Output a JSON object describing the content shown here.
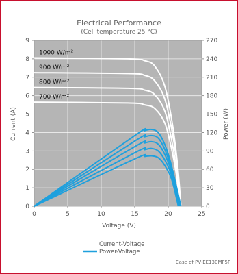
{
  "chart_data": {
    "type": "line",
    "title": "Electrical  Performance",
    "subtitle": "(Cell temperature 25 °C)",
    "xlabel": "Voltage  (V)",
    "ylabel_left": "Current  (A)",
    "ylabel_right": "Power  (W)",
    "xlim": [
      0,
      25
    ],
    "ylim_left": [
      0,
      9
    ],
    "ylim_right": [
      0,
      270
    ],
    "x_ticks": [
      "0",
      "5",
      "10",
      "15",
      "20",
      "25"
    ],
    "y_left_ticks": [
      "0",
      "1",
      "2",
      "3",
      "4",
      "5",
      "6",
      "7",
      "8",
      "9"
    ],
    "y_right_ticks": [
      "0",
      "30",
      "60",
      "90",
      "120",
      "150",
      "180",
      "210",
      "240",
      "270"
    ],
    "grid": true,
    "background_color": "#b5b5b5",
    "current_color": "#ffffff",
    "power_color": "#1fa0dd",
    "irradiance_labels": [
      "1000  W/m²",
      "900  W/m²",
      "800  W/m²",
      "700  W/m²"
    ],
    "current_voltage_series": [
      {
        "points": [
          [
            0,
            8.05
          ],
          [
            14,
            8.0
          ],
          [
            16.5,
            7.9
          ],
          [
            18,
            7.6
          ],
          [
            19.5,
            6.5
          ],
          [
            20.6,
            4.5
          ],
          [
            21.4,
            2.2
          ],
          [
            21.9,
            0
          ]
        ]
      },
      {
        "points": [
          [
            0,
            7.25
          ],
          [
            14,
            7.2
          ],
          [
            16.5,
            7.1
          ],
          [
            18,
            6.8
          ],
          [
            19.5,
            5.8
          ],
          [
            20.6,
            4.0
          ],
          [
            21.4,
            2.0
          ],
          [
            21.8,
            0
          ]
        ]
      },
      {
        "points": [
          [
            0,
            6.45
          ],
          [
            14,
            6.4
          ],
          [
            16.5,
            6.3
          ],
          [
            18,
            6.05
          ],
          [
            19.5,
            5.15
          ],
          [
            20.5,
            3.6
          ],
          [
            21.3,
            1.8
          ],
          [
            21.7,
            0
          ]
        ]
      },
      {
        "points": [
          [
            0,
            5.65
          ],
          [
            14,
            5.6
          ],
          [
            16.5,
            5.5
          ],
          [
            18,
            5.3
          ],
          [
            19.5,
            4.5
          ],
          [
            20.5,
            3.1
          ],
          [
            21.3,
            1.5
          ],
          [
            21.6,
            0
          ]
        ]
      }
    ],
    "power_voltage_series": [
      {
        "points": [
          [
            0,
            0
          ],
          [
            15,
            115
          ],
          [
            16.5,
            123
          ],
          [
            17.5,
            125
          ],
          [
            18.5,
            120
          ],
          [
            19.5,
            100
          ],
          [
            20.5,
            65
          ],
          [
            21.9,
            0
          ]
        ]
      },
      {
        "points": [
          [
            0,
            0
          ],
          [
            15,
            106
          ],
          [
            16.5,
            113
          ],
          [
            17.5,
            115
          ],
          [
            18.5,
            111
          ],
          [
            19.5,
            92
          ],
          [
            20.5,
            60
          ],
          [
            21.8,
            0
          ]
        ]
      },
      {
        "points": [
          [
            0,
            0
          ],
          [
            15,
            97
          ],
          [
            16.5,
            103
          ],
          [
            17.5,
            105
          ],
          [
            18.5,
            101
          ],
          [
            19.5,
            84
          ],
          [
            20.5,
            55
          ],
          [
            21.7,
            0
          ]
        ]
      },
      {
        "points": [
          [
            0,
            0
          ],
          [
            15,
            87
          ],
          [
            16.5,
            92
          ],
          [
            17.5,
            94
          ],
          [
            18.5,
            90
          ],
          [
            19.5,
            75
          ],
          [
            20.5,
            50
          ],
          [
            21.6,
            0
          ]
        ]
      },
      {
        "points": [
          [
            0,
            0
          ],
          [
            15,
            77
          ],
          [
            16.5,
            81
          ],
          [
            17.5,
            82
          ],
          [
            18.5,
            79
          ],
          [
            19.5,
            66
          ],
          [
            20.5,
            44
          ],
          [
            21.5,
            0
          ]
        ]
      }
    ],
    "legend": [
      {
        "label": "Current-Voltage",
        "key": "current"
      },
      {
        "label": "Power-Voltage",
        "key": "power"
      }
    ],
    "legend_placement": "bottom-center"
  },
  "caption": "Case of PV-EE130MF5F"
}
